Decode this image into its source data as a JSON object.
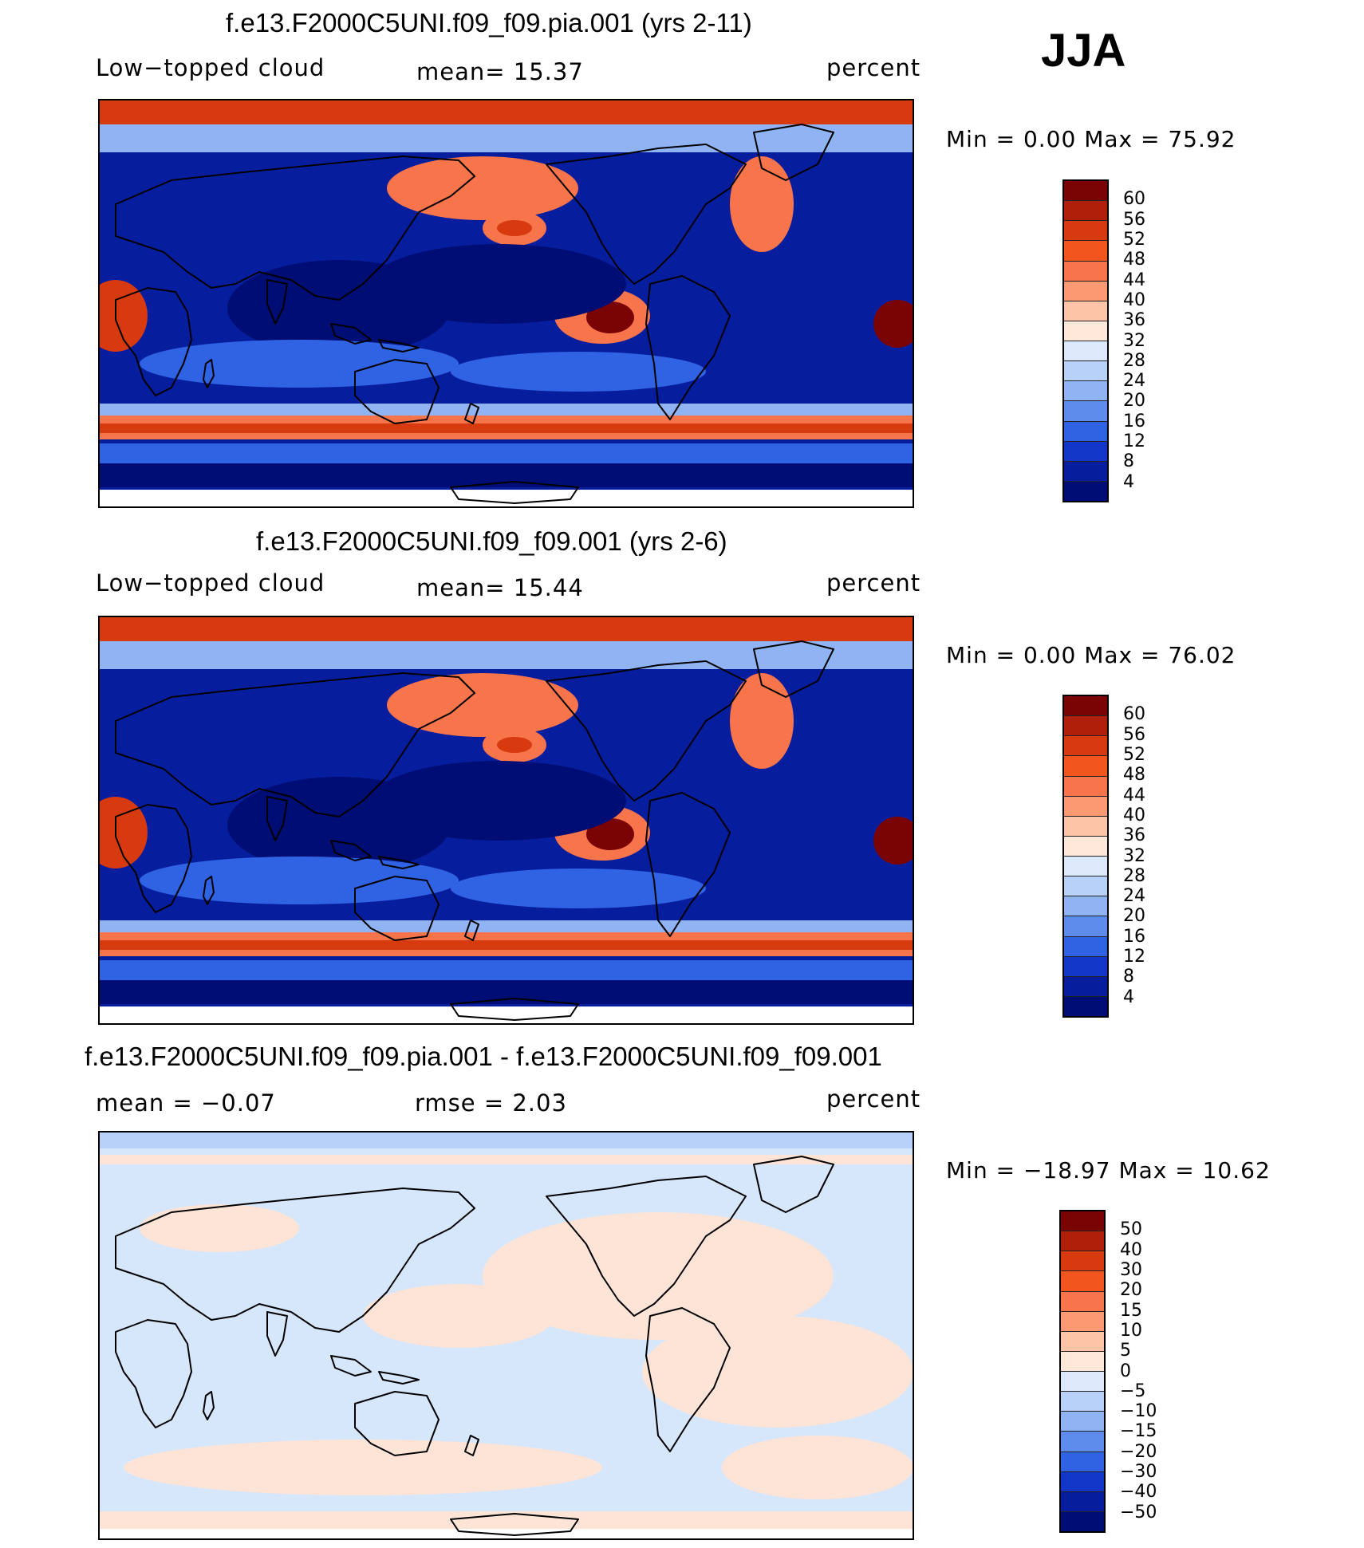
{
  "season": "JJA",
  "panels": [
    {
      "title": "f.e13.F2000C5UNI.f09_f09.pia.001 (yrs 2-11)",
      "left_label": "Low−topped cloud",
      "center_label": "mean=   15.37",
      "right_label": "percent",
      "min_max": "Min =     0.00 Max =    75.92",
      "colorbar_labels": [
        "60",
        "56",
        "52",
        "48",
        "44",
        "40",
        "36",
        "32",
        "28",
        "24",
        "20",
        "16",
        "12",
        "8",
        "4"
      ],
      "field": "model"
    },
    {
      "title": "f.e13.F2000C5UNI.f09_f09.001 (yrs 2-6)",
      "left_label": "Low−topped cloud",
      "center_label": "mean=   15.44",
      "right_label": "percent",
      "min_max": "Min =     0.00 Max =    76.02",
      "colorbar_labels": [
        "60",
        "56",
        "52",
        "48",
        "44",
        "40",
        "36",
        "32",
        "28",
        "24",
        "20",
        "16",
        "12",
        "8",
        "4"
      ],
      "field": "model"
    },
    {
      "title": "f.e13.F2000C5UNI.f09_f09.pia.001 - f.e13.F2000C5UNI.f09_f09.001",
      "left_label": "mean =   −0.07",
      "center_label": "rmse =     2.03",
      "right_label": "percent",
      "min_max": "Min = −18.97  Max =    10.62",
      "colorbar_labels": [
        "50",
        "40",
        "30",
        "20",
        "15",
        "10",
        "5",
        "0",
        "−5",
        "−10",
        "−15",
        "−20",
        "−30",
        "−40",
        "−50"
      ],
      "field": "diff"
    }
  ],
  "colorbar_colors": [
    "#7a0403",
    "#b01f0a",
    "#d83a0f",
    "#f2561e",
    "#f8744a",
    "#fb9a72",
    "#fdc4a8",
    "#fee8da",
    "#dce9fb",
    "#b8d1f8",
    "#8fb3f3",
    "#5d8cec",
    "#2f63e3",
    "#1236c8",
    "#061e9e",
    "#000d75"
  ],
  "map_colors": {
    "ocean_low": "#061e9e",
    "ocean_deep": "#000d75",
    "mid_blue": "#2f63e3",
    "light_blue": "#8fb3f3",
    "pale": "#fee8da",
    "orange": "#f8744a",
    "red": "#d83a0f",
    "dark_red": "#7a0403",
    "diff_pos": "#fde4d6",
    "diff_neg": "#d6e6fb",
    "diff_neg2": "#b8d1f8"
  }
}
